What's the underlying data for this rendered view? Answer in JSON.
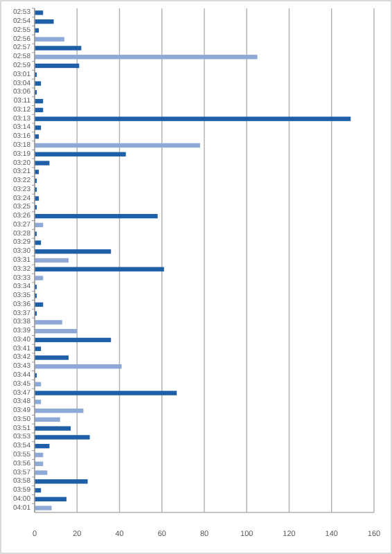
{
  "chart_data": {
    "type": "bar",
    "orientation": "horizontal",
    "categories": [
      "02:53",
      "02:54",
      "02:55",
      "02:56",
      "02:57",
      "02:58",
      "02:59",
      "03:01",
      "03:04",
      "03:06",
      "03:11",
      "03:12",
      "03:13",
      "03:14",
      "03:16",
      "03:18",
      "03:19",
      "03:20",
      "03:21",
      "03:22",
      "03:23",
      "03:24",
      "03:25",
      "03:26",
      "03:27",
      "03:28",
      "03:29",
      "03:30",
      "03:31",
      "03:32",
      "03:33",
      "03:34",
      "03:35",
      "03:36",
      "03:37",
      "03:38",
      "03:39",
      "03:40",
      "03:41",
      "03:42",
      "03:43",
      "03:44",
      "03:45",
      "03:47",
      "03:48",
      "03:49",
      "03:50",
      "03:51",
      "03:53",
      "03:54",
      "03:55",
      "03:56",
      "03:57",
      "03:58",
      "03:59",
      "04:00",
      "04:01"
    ],
    "values": [
      4,
      9,
      2,
      14,
      22,
      105,
      21,
      1,
      3,
      1,
      4,
      4,
      149,
      3,
      2,
      78,
      43,
      7,
      2,
      1,
      1,
      2,
      1,
      58,
      4,
      1,
      3,
      36,
      16,
      61,
      4,
      1,
      1,
      4,
      1,
      13,
      20,
      36,
      3,
      16,
      41,
      1,
      3,
      67,
      3,
      23,
      12,
      17,
      26,
      7,
      4,
      4,
      6,
      25,
      3,
      15,
      8
    ],
    "colors": [
      "#1f5fa8",
      "#1f5fa8",
      "#1f5fa8",
      "#8ea9d6",
      "#1f5fa8",
      "#8ea9d6",
      "#1f5fa8",
      "#1f5fa8",
      "#1f5fa8",
      "#1f5fa8",
      "#1f5fa8",
      "#1f5fa8",
      "#1f5fa8",
      "#1f5fa8",
      "#1f5fa8",
      "#8ea9d6",
      "#1f5fa8",
      "#1f5fa8",
      "#1f5fa8",
      "#1f5fa8",
      "#1f5fa8",
      "#1f5fa8",
      "#1f5fa8",
      "#1f5fa8",
      "#8ea9d6",
      "#1f5fa8",
      "#1f5fa8",
      "#1f5fa8",
      "#8ea9d6",
      "#1f5fa8",
      "#8ea9d6",
      "#1f5fa8",
      "#1f5fa8",
      "#1f5fa8",
      "#1f5fa8",
      "#8ea9d6",
      "#8ea9d6",
      "#1f5fa8",
      "#1f5fa8",
      "#1f5fa8",
      "#8ea9d6",
      "#1f5fa8",
      "#8ea9d6",
      "#1f5fa8",
      "#8ea9d6",
      "#8ea9d6",
      "#8ea9d6",
      "#1f5fa8",
      "#1f5fa8",
      "#1f5fa8",
      "#8ea9d6",
      "#8ea9d6",
      "#8ea9d6",
      "#1f5fa8",
      "#1f5fa8",
      "#1f5fa8",
      "#8ea9d6"
    ],
    "xlim": [
      0,
      160
    ],
    "xticks": [
      0,
      20,
      40,
      60,
      80,
      100,
      120,
      140,
      160
    ],
    "grid": "x"
  }
}
